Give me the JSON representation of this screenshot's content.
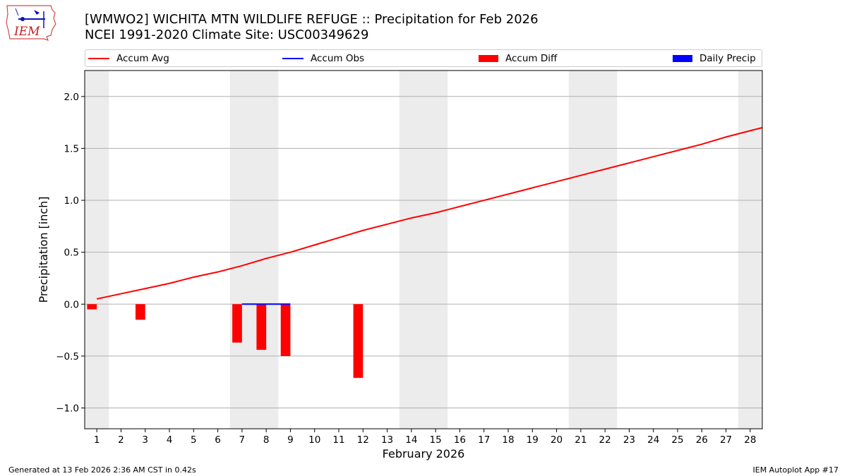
{
  "logo_text": "IEM",
  "title_line1": "[WMWO2] WICHITA MTN WILDLIFE REFUGE :: Precipitation for Feb 2026",
  "title_line2": "NCEI 1991-2020 Climate Site: USC00349629",
  "legend": [
    {
      "label": "Accum Avg",
      "kind": "line",
      "color": "#ff0000"
    },
    {
      "label": "Accum Obs",
      "kind": "line",
      "color": "#0000ff"
    },
    {
      "label": "Accum Diff",
      "kind": "rect",
      "color": "#ff0000"
    },
    {
      "label": "Daily Precip",
      "kind": "rect",
      "color": "#0000ff"
    }
  ],
  "footer_left": "Generated at 13 Feb 2026 2:36 AM CST in 0.42s",
  "footer_right": "IEM Autoplot App #17",
  "colors": {
    "avg": "#ff0000",
    "obs": "#0000ff",
    "diff": "#ff0000",
    "weekend": "#ececec",
    "grid": "#b0b0b0"
  },
  "chart_data": {
    "type": "line",
    "title": "[WMWO2] WICHITA MTN WILDLIFE REFUGE :: Precipitation for Feb 2026",
    "xlabel": "February 2026",
    "ylabel": "Precipitation [inch]",
    "xlim": [
      0.5,
      28.5
    ],
    "ylim": [
      -1.2,
      2.25
    ],
    "yticks": [
      -1.0,
      -0.5,
      0.0,
      0.5,
      1.0,
      1.5,
      2.0
    ],
    "ytick_labels": [
      "−1.0",
      "−0.5",
      "0.0",
      "0.5",
      "1.0",
      "1.5",
      "2.0"
    ],
    "xticks": [
      1,
      2,
      3,
      4,
      5,
      6,
      7,
      8,
      9,
      10,
      11,
      12,
      13,
      14,
      15,
      16,
      17,
      18,
      19,
      20,
      21,
      22,
      23,
      24,
      25,
      26,
      27,
      28
    ],
    "grid": "y",
    "weekend_spans": [
      [
        0.5,
        1.5
      ],
      [
        6.5,
        8.5
      ],
      [
        13.5,
        15.5
      ],
      [
        20.5,
        22.5
      ],
      [
        27.5,
        28.5
      ]
    ],
    "series": [
      {
        "name": "Accum Avg",
        "type": "line",
        "x": [
          1,
          2,
          3,
          4,
          5,
          6,
          7,
          8,
          9,
          10,
          11,
          12,
          13,
          14,
          15,
          16,
          17,
          18,
          19,
          20,
          21,
          22,
          23,
          24,
          25,
          26,
          27,
          28,
          28.5
        ],
        "values": [
          0.05,
          0.1,
          0.15,
          0.2,
          0.26,
          0.31,
          0.37,
          0.44,
          0.5,
          0.57,
          0.64,
          0.71,
          0.77,
          0.83,
          0.88,
          0.94,
          1.0,
          1.06,
          1.12,
          1.18,
          1.24,
          1.3,
          1.36,
          1.42,
          1.48,
          1.54,
          1.61,
          1.67,
          1.7
        ]
      },
      {
        "name": "Accum Obs",
        "type": "line",
        "x": [
          7,
          8,
          9
        ],
        "values": [
          0.0,
          0.0,
          0.0
        ]
      },
      {
        "name": "Accum Diff",
        "type": "bar",
        "x": [
          0.8,
          2.8,
          6.8,
          7.8,
          8.8,
          11.8
        ],
        "values": [
          -0.05,
          -0.15,
          -0.37,
          -0.44,
          -0.5,
          -0.71
        ]
      },
      {
        "name": "Daily Precip",
        "type": "bar",
        "x": [],
        "values": []
      }
    ]
  }
}
